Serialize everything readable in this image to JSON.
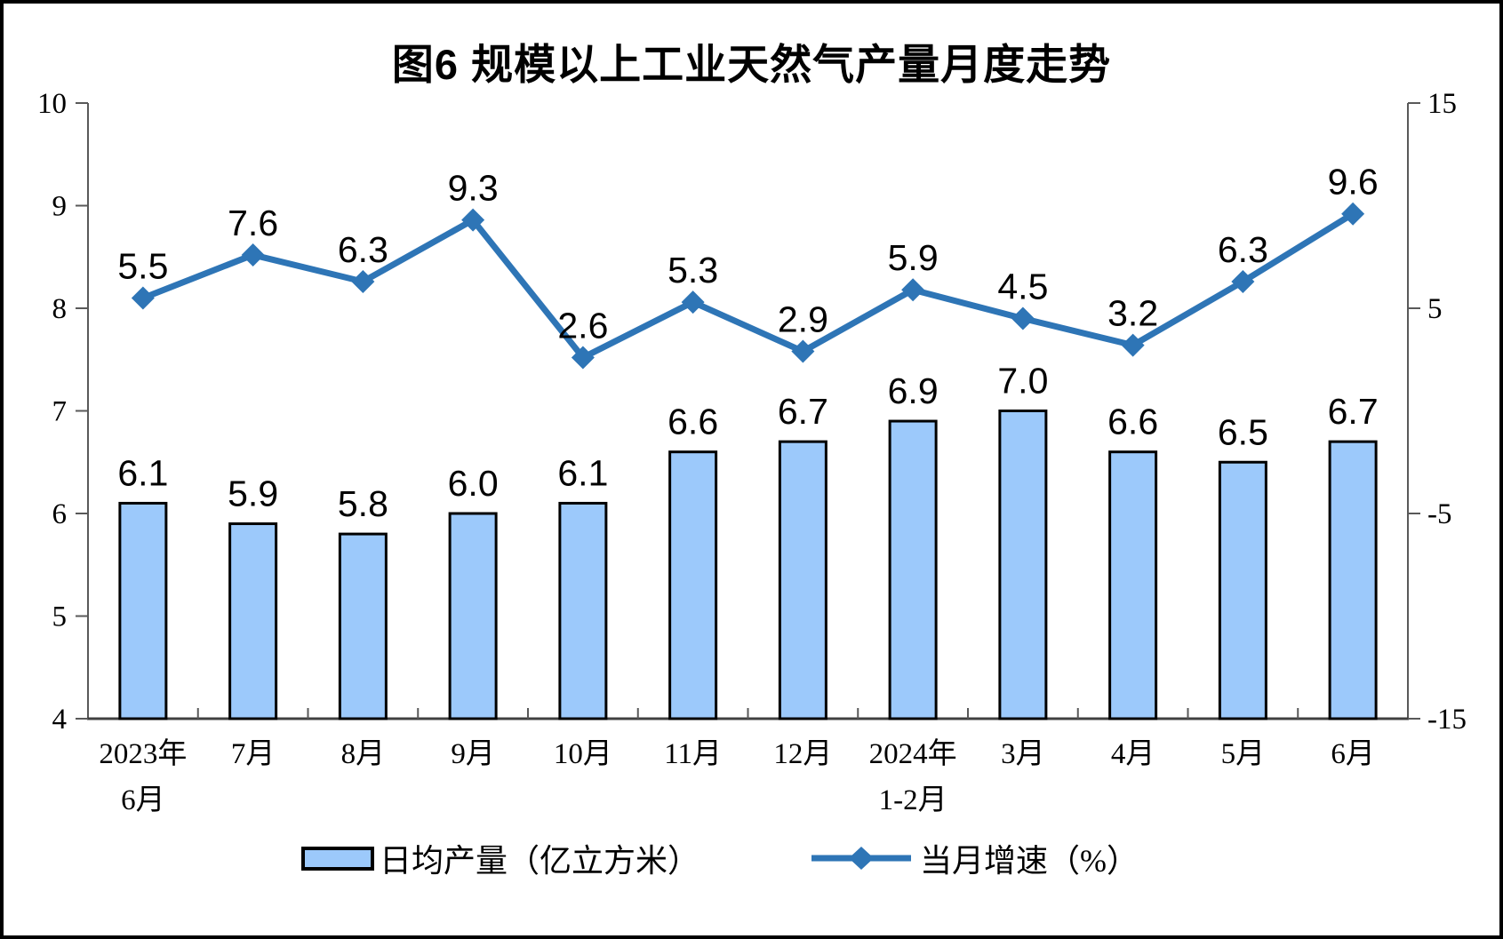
{
  "title": "图6 规模以上工业天然气产量月度走势",
  "legend": {
    "bar_label": "日均产量（亿立方米）",
    "line_label": "当月增速（%）"
  },
  "chart_data": {
    "type": "bar+line",
    "title": "图6 规模以上工业天然气产量月度走势",
    "categories": [
      {
        "label": "2023年",
        "sub": "6月"
      },
      {
        "label": "7月"
      },
      {
        "label": "8月"
      },
      {
        "label": "9月"
      },
      {
        "label": "10月"
      },
      {
        "label": "11月"
      },
      {
        "label": "12月"
      },
      {
        "label": "2024年",
        "sub": "1-2月"
      },
      {
        "label": "3月"
      },
      {
        "label": "4月"
      },
      {
        "label": "5月"
      },
      {
        "label": "6月"
      }
    ],
    "series": [
      {
        "name": "日均产量（亿立方米）",
        "type": "bar",
        "axis": "left",
        "values": [
          6.1,
          5.9,
          5.8,
          6.0,
          6.1,
          6.6,
          6.7,
          6.9,
          7.0,
          6.6,
          6.5,
          6.7
        ]
      },
      {
        "name": "当月增速（%）",
        "type": "line",
        "axis": "right",
        "values": [
          5.5,
          7.6,
          6.3,
          9.3,
          2.6,
          5.3,
          2.9,
          5.9,
          4.5,
          3.2,
          6.3,
          9.6
        ]
      }
    ],
    "left_axis": {
      "min": 4,
      "max": 10,
      "ticks": [
        4,
        5,
        6,
        7,
        8,
        9,
        10
      ]
    },
    "right_axis": {
      "min": -15,
      "max": 15,
      "ticks": [
        -15,
        -5,
        5,
        15
      ]
    },
    "legend_position": "bottom",
    "grid": false,
    "colors": {
      "bar_fill": "#9CC9FB",
      "bar_border": "#000000",
      "line": "#2E75B6",
      "axis": "#595959",
      "baseline": "#404040",
      "text": "#000000",
      "background": "#FFFFFF"
    }
  }
}
